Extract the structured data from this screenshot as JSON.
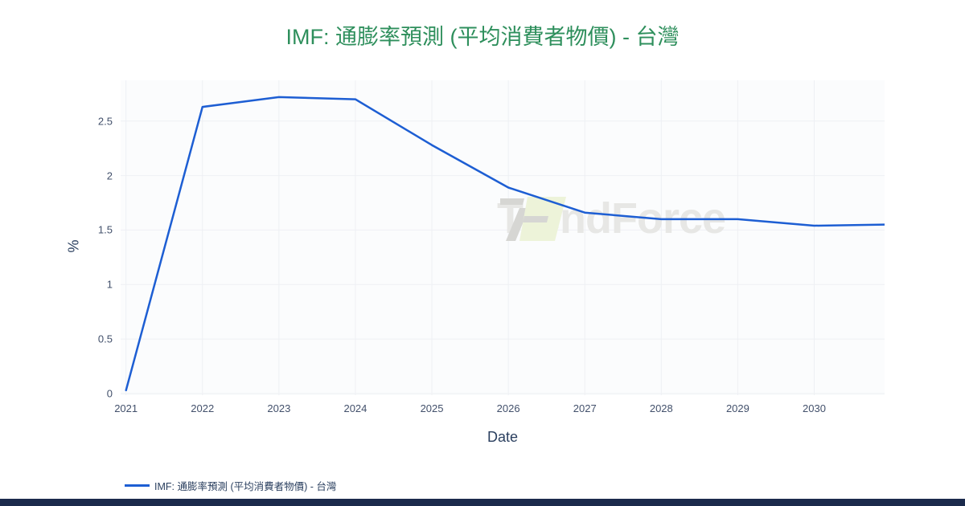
{
  "header": {
    "title": "IMF: 通膨率預測 (平均消費者物價) - 台灣"
  },
  "watermark": {
    "text": "TrendForce"
  },
  "chart_data": {
    "type": "line",
    "title": "IMF: 通膨率預測 (平均消費者物價) - 台灣",
    "xlabel": "Date",
    "ylabel": "%",
    "x_ticks": [
      2021,
      2022,
      2023,
      2024,
      2025,
      2026,
      2027,
      2028,
      2029,
      2030
    ],
    "y_ticks": [
      0,
      0.5,
      1,
      1.5,
      2,
      2.5
    ],
    "x_range": [
      2020.93,
      2030.92
    ],
    "y_range": [
      -0.015,
      2.874
    ],
    "grid": true,
    "legend_position": "bottom-left",
    "series": [
      {
        "name": "IMF: 通膨率預測 (平均消費者物價) - 台灣",
        "color": "#1d5ed3",
        "x": [
          2021,
          2022,
          2023,
          2024,
          2025,
          2026,
          2027,
          2028,
          2029,
          2030,
          2030.92
        ],
        "y": [
          0.03,
          2.63,
          2.72,
          2.7,
          2.28,
          1.89,
          1.66,
          1.6,
          1.6,
          1.54,
          1.55
        ]
      }
    ]
  },
  "colors": {
    "title_green": "#2e8f5c",
    "line_blue": "#1d5ed3",
    "tick_text": "#42506b",
    "axis_text": "#2a3f5f",
    "grid": "#eef0f4",
    "plot_background": "#fbfcfd",
    "footer_navy": "#1b2a4c",
    "watermark_text_gray": "#e7e7e5",
    "watermark_logo_gray": "#d6d6d3",
    "watermark_logo_green": "#edf3d9"
  }
}
